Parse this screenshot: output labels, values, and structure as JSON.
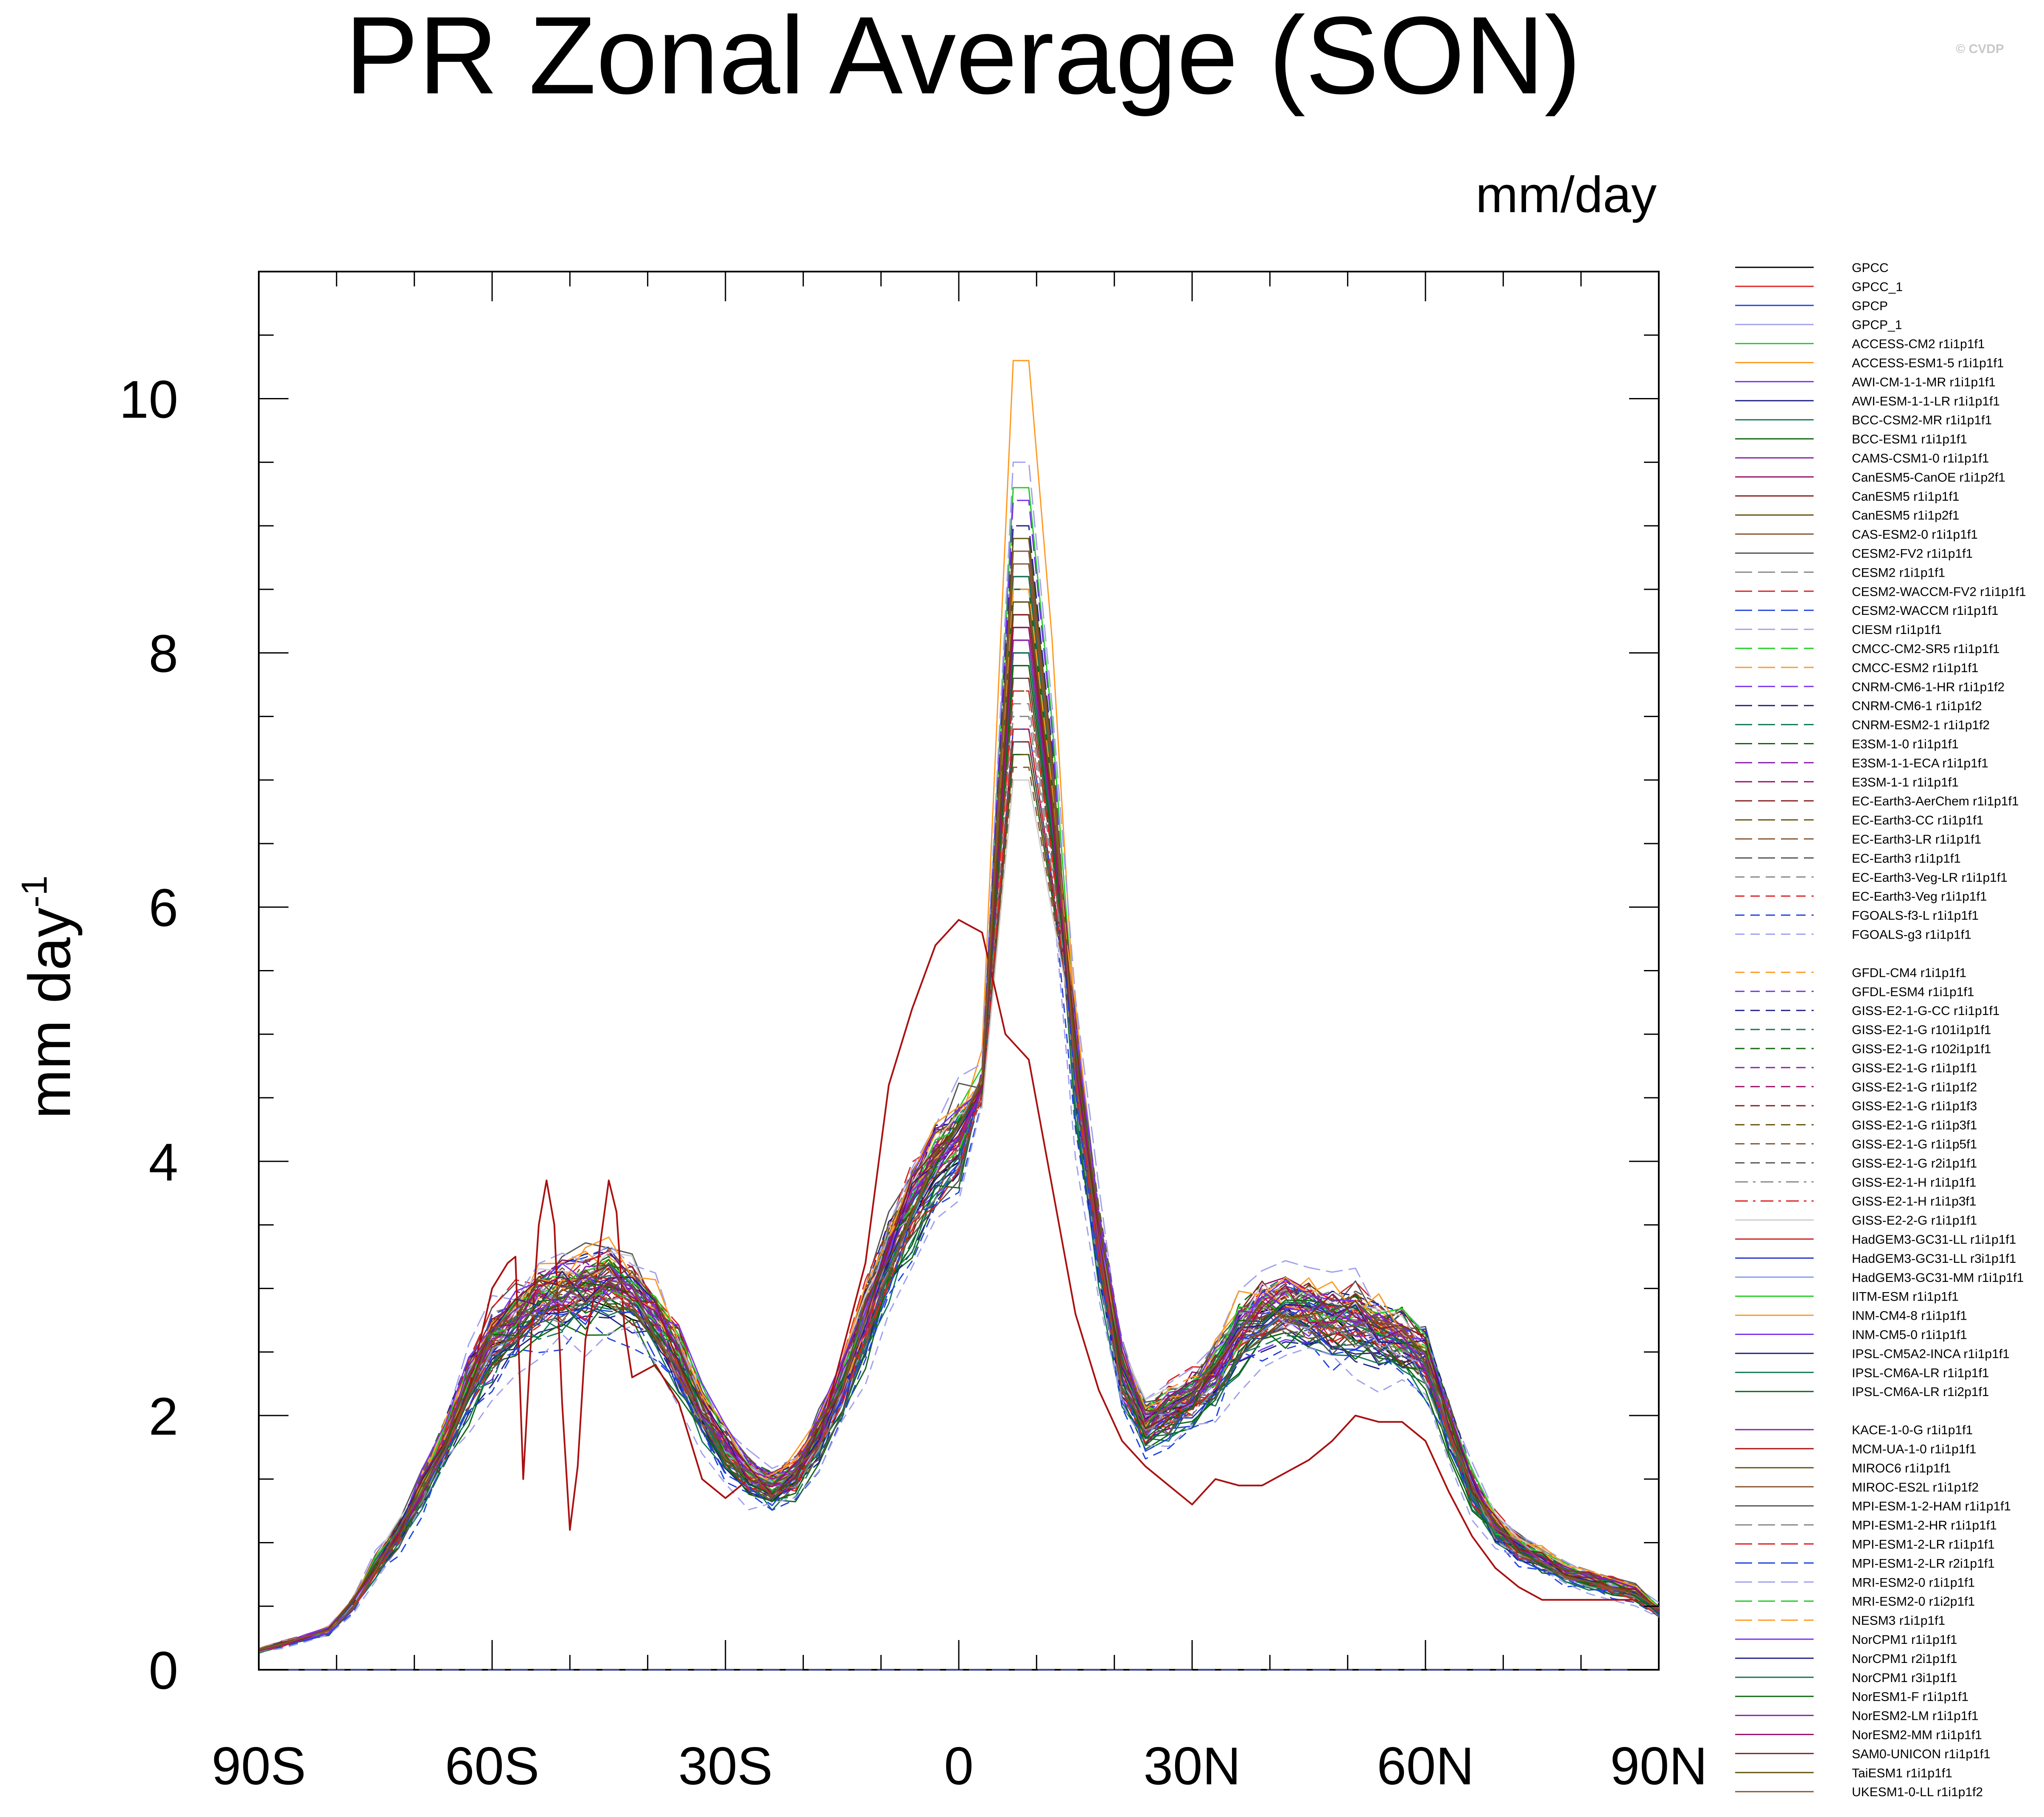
{
  "chart_data": {
    "type": "line",
    "title": "PR Zonal Average (SON)",
    "units": "mm/day",
    "ylabel": "mm day",
    "ylabel_superscript": "-1",
    "watermark": "© CVDP",
    "xlim": [
      -90,
      90
    ],
    "ylim": [
      0,
      11
    ],
    "x_ticks": [
      {
        "value": -90,
        "label": "90S"
      },
      {
        "value": -60,
        "label": "60S"
      },
      {
        "value": -30,
        "label": "30S"
      },
      {
        "value": 0,
        "label": "0"
      },
      {
        "value": 30,
        "label": "30N"
      },
      {
        "value": 60,
        "label": "60N"
      },
      {
        "value": 90,
        "label": "90N"
      }
    ],
    "y_ticks": [
      {
        "value": 0,
        "label": "0"
      },
      {
        "value": 2,
        "label": "2"
      },
      {
        "value": 4,
        "label": "4"
      },
      {
        "value": 6,
        "label": "6"
      },
      {
        "value": 8,
        "label": "8"
      },
      {
        "value": 10,
        "label": "10"
      }
    ],
    "reference": {
      "x": [
        -90,
        -87,
        -84,
        -81,
        -78,
        -75,
        -72,
        -69,
        -66,
        -63,
        -60,
        -57,
        -54,
        -51,
        -48,
        -45,
        -42,
        -39,
        -36,
        -33,
        -30,
        -27,
        -24,
        -21,
        -18,
        -15,
        -12,
        -9,
        -6,
        -3,
        0,
        3,
        6,
        9,
        12,
        15,
        18,
        21,
        24,
        27,
        30,
        33,
        36,
        39,
        42,
        45,
        48,
        51,
        54,
        57,
        60,
        63,
        66,
        69,
        72,
        75,
        78,
        81,
        84,
        87,
        90
      ],
      "y": [
        0.15,
        0.2,
        0.25,
        0.3,
        0.5,
        0.8,
        1.05,
        1.4,
        1.8,
        2.2,
        2.5,
        2.7,
        2.85,
        2.9,
        2.95,
        3.0,
        2.9,
        2.7,
        2.4,
        2.0,
        1.7,
        1.5,
        1.4,
        1.5,
        1.8,
        2.2,
        2.7,
        3.2,
        3.6,
        3.9,
        4.1,
        4.6,
        6.5,
        8.3,
        6.8,
        4.7,
        3.3,
        2.3,
        1.9,
        2.0,
        2.1,
        2.3,
        2.6,
        2.75,
        2.8,
        2.75,
        2.7,
        2.7,
        2.6,
        2.55,
        2.4,
        1.9,
        1.4,
        1.1,
        0.95,
        0.85,
        0.75,
        0.7,
        0.65,
        0.6,
        0.45
      ]
    },
    "highlight_anomaly": {
      "name": "MCM-UA-1-0 r1i1p1f1",
      "x": [
        -90,
        -87,
        -84,
        -81,
        -78,
        -75,
        -72,
        -69,
        -66,
        -63,
        -60,
        -58,
        -57,
        -56,
        -55,
        -54,
        -53,
        -52,
        -51,
        -50,
        -49,
        -48,
        -47,
        -46,
        -45,
        -44,
        -43,
        -42,
        -39,
        -36,
        -33,
        -30,
        -27,
        -24,
        -21,
        -18,
        -15,
        -12,
        -9,
        -6,
        -3,
        0,
        3,
        6,
        9,
        12,
        15,
        18,
        21,
        24,
        27,
        30,
        33,
        36,
        39,
        42,
        45,
        48,
        51,
        54,
        57,
        60,
        63,
        66,
        69,
        72,
        75,
        78,
        81,
        84,
        87,
        90
      ],
      "y": [
        0.15,
        0.2,
        0.25,
        0.3,
        0.5,
        0.8,
        1.05,
        1.4,
        1.8,
        2.2,
        3.0,
        3.2,
        3.25,
        1.5,
        2.6,
        3.5,
        3.85,
        3.5,
        2.1,
        1.1,
        1.6,
        2.6,
        2.9,
        3.4,
        3.85,
        3.6,
        2.7,
        2.3,
        2.4,
        2.1,
        1.5,
        1.35,
        1.5,
        1.45,
        1.5,
        1.8,
        2.5,
        3.2,
        4.6,
        5.2,
        5.7,
        5.9,
        5.8,
        5.0,
        4.8,
        3.8,
        2.8,
        2.2,
        1.8,
        1.6,
        1.45,
        1.3,
        1.5,
        1.45,
        1.45,
        1.55,
        1.65,
        1.8,
        2.0,
        1.95,
        1.95,
        1.8,
        1.4,
        1.05,
        0.8,
        0.65,
        0.55,
        0.55,
        0.55,
        0.55,
        0.55,
        0.5
      ]
    },
    "model_zero_line": {
      "name": "GISS-E2-1-H r1i1p3f1",
      "value": 0.0
    },
    "series": [
      {
        "name": "GPCC",
        "color": "#000000",
        "dash": "solid",
        "peak": 8.2,
        "offset": 0.0
      },
      {
        "name": "GPCC_1",
        "color": "#dd2222",
        "dash": "solid",
        "peak": 8.0,
        "offset": 0.05
      },
      {
        "name": "GPCP",
        "color": "#2244dd",
        "dash": "solid",
        "peak": 8.1,
        "offset": -0.05
      },
      {
        "name": "GPCP_1",
        "color": "#a0a0ee",
        "dash": "solid",
        "peak": 7.9,
        "offset": 0.02
      },
      {
        "name": "ACCESS-CM2 r1i1p1f1",
        "color": "#22cc22",
        "dash": "solid",
        "peak": 9.3,
        "offset": 0.08
      },
      {
        "name": "ACCESS-ESM1-5 r1i1p1f1",
        "color": "#ff9922",
        "dash": "solid",
        "peak": 10.3,
        "offset": 0.12
      },
      {
        "name": "AWI-CM-1-1-MR r1i1p1f1",
        "color": "#7733ee",
        "dash": "solid",
        "peak": 8.6,
        "offset": 0.0
      },
      {
        "name": "AWI-ESM-1-1-LR r1i1p1f1",
        "color": "#222288",
        "dash": "solid",
        "peak": 8.4,
        "offset": -0.06
      },
      {
        "name": "BCC-CSM2-MR r1i1p1f1",
        "color": "#117755",
        "dash": "solid",
        "peak": 8.5,
        "offset": -0.1
      },
      {
        "name": "BCC-ESM1 r1i1p1f1",
        "color": "#116611",
        "dash": "solid",
        "peak": 8.3,
        "offset": -0.12
      },
      {
        "name": "CAMS-CSM1-0 r1i1p1f1",
        "color": "#8822aa",
        "dash": "solid",
        "peak": 8.8,
        "offset": 0.05
      },
      {
        "name": "CanESM5-CanOE r1i1p2f1",
        "color": "#991166",
        "dash": "solid",
        "peak": 8.7,
        "offset": 0.1
      },
      {
        "name": "CanESM5 r1i1p1f1",
        "color": "#882222",
        "dash": "solid",
        "peak": 8.6,
        "offset": 0.1
      },
      {
        "name": "CanESM5 r1i1p2f1",
        "color": "#665511",
        "dash": "solid",
        "peak": 8.5,
        "offset": 0.08
      },
      {
        "name": "CAS-ESM2-0 r1i1p1f1",
        "color": "#885533",
        "dash": "solid",
        "peak": 8.9,
        "offset": -0.02
      },
      {
        "name": "CESM2-FV2 r1i1p1f1",
        "color": "#555555",
        "dash": "solid",
        "peak": 8.1,
        "offset": 0.15
      },
      {
        "name": "CESM2 r1i1p1f1",
        "color": "#888888",
        "dash": "longdash",
        "peak": 8.2,
        "offset": 0.12
      },
      {
        "name": "CESM2-WACCM-FV2 r1i1p1f1",
        "color": "#dd2222",
        "dash": "longdash",
        "peak": 8.0,
        "offset": 0.14
      },
      {
        "name": "CESM2-WACCM r1i1p1f1",
        "color": "#2244dd",
        "dash": "longdash",
        "peak": 8.3,
        "offset": 0.1
      },
      {
        "name": "CIESM r1i1p1f1",
        "color": "#a0a0ee",
        "dash": "longdash",
        "peak": 9.5,
        "offset": 0.2
      },
      {
        "name": "CMCC-CM2-SR5 r1i1p1f1",
        "color": "#22cc22",
        "dash": "longdash",
        "peak": 8.4,
        "offset": 0.05
      },
      {
        "name": "CMCC-ESM2 r1i1p1f1",
        "color": "#ff9922",
        "dash": "longdash",
        "peak": 8.5,
        "offset": 0.04
      },
      {
        "name": "CNRM-CM6-1-HR r1i1p1f2",
        "color": "#7733ee",
        "dash": "longdash",
        "peak": 9.2,
        "offset": -0.05
      },
      {
        "name": "CNRM-CM6-1 r1i1p1f2",
        "color": "#222288",
        "dash": "longdash",
        "peak": 9.0,
        "offset": -0.08
      },
      {
        "name": "CNRM-ESM2-1 r1i1p1f2",
        "color": "#117755",
        "dash": "longdash",
        "peak": 8.9,
        "offset": -0.07
      },
      {
        "name": "E3SM-1-0 r1i1p1f1",
        "color": "#116611",
        "dash": "longdash",
        "peak": 8.0,
        "offset": 0.0
      },
      {
        "name": "E3SM-1-1-ECA r1i1p1f1",
        "color": "#8822aa",
        "dash": "longdash",
        "peak": 8.1,
        "offset": 0.02
      },
      {
        "name": "E3SM-1-1 r1i1p1f1",
        "color": "#991166",
        "dash": "longdash",
        "peak": 8.0,
        "offset": 0.01
      },
      {
        "name": "EC-Earth3-AerChem r1i1p1f1",
        "color": "#882222",
        "dash": "longdash",
        "peak": 7.8,
        "offset": -0.02
      },
      {
        "name": "EC-Earth3-CC r1i1p1f1",
        "color": "#665511",
        "dash": "longdash",
        "peak": 7.7,
        "offset": -0.03
      },
      {
        "name": "EC-Earth3-LR r1i1p1f1",
        "color": "#885533",
        "dash": "longdash",
        "peak": 7.9,
        "offset": -0.01
      },
      {
        "name": "EC-Earth3 r1i1p1f1",
        "color": "#555555",
        "dash": "longdash",
        "peak": 7.8,
        "offset": -0.02
      },
      {
        "name": "EC-Earth3-Veg-LR r1i1p1f1",
        "color": "#888888",
        "dash": "dash",
        "peak": 7.6,
        "offset": 0.0
      },
      {
        "name": "EC-Earth3-Veg r1i1p1f1",
        "color": "#dd2222",
        "dash": "dash",
        "peak": 7.7,
        "offset": -0.01
      },
      {
        "name": "FGOALS-f3-L r1i1p1f1",
        "color": "#2244dd",
        "dash": "dash",
        "peak": 7.4,
        "offset": -0.15
      },
      {
        "name": "FGOALS-g3 r1i1p1f1",
        "color": "#a0a0ee",
        "dash": "dash",
        "peak": 7.3,
        "offset": -0.2
      },
      {
        "name": "GFDL-CM4 r1i1p1f1",
        "color": "#ff9922",
        "dash": "dash",
        "peak": 8.6,
        "offset": 0.06
      },
      {
        "name": "GFDL-ESM4 r1i1p1f1",
        "color": "#7733ee",
        "dash": "dash",
        "peak": 8.5,
        "offset": 0.05
      },
      {
        "name": "GISS-E2-1-G-CC r1i1p1f1",
        "color": "#222288",
        "dash": "dash",
        "peak": 7.2,
        "offset": 0.1
      },
      {
        "name": "GISS-E2-1-G r101i1p1f1",
        "color": "#117755",
        "dash": "dash",
        "peak": 7.3,
        "offset": 0.09
      },
      {
        "name": "GISS-E2-1-G r102i1p1f1",
        "color": "#116611",
        "dash": "dash",
        "peak": 7.2,
        "offset": 0.1
      },
      {
        "name": "GISS-E2-1-G r1i1p1f1",
        "color": "#8822aa",
        "dash": "dash",
        "peak": 7.3,
        "offset": 0.08
      },
      {
        "name": "GISS-E2-1-G r1i1p1f2",
        "color": "#991166",
        "dash": "dash",
        "peak": 7.4,
        "offset": 0.07
      },
      {
        "name": "GISS-E2-1-G r1i1p1f3",
        "color": "#882222",
        "dash": "dash",
        "peak": 7.3,
        "offset": 0.1
      },
      {
        "name": "GISS-E2-1-G r1i1p3f1",
        "color": "#665511",
        "dash": "dash",
        "peak": 7.2,
        "offset": 0.1
      },
      {
        "name": "GISS-E2-1-G r1i1p5f1",
        "color": "#885533",
        "dash": "dash",
        "peak": 7.1,
        "offset": 0.1
      },
      {
        "name": "GISS-E2-1-G r2i1p1f1",
        "color": "#555555",
        "dash": "dash",
        "peak": 7.3,
        "offset": 0.1
      },
      {
        "name": "GISS-E2-1-H r1i1p1f1",
        "color": "#888888",
        "dash": "dashdot",
        "peak": 7.5,
        "offset": 0.05
      },
      {
        "name": "GISS-E2-1-H r1i1p3f1",
        "color": "#dd2222",
        "dash": "dashdot",
        "peak": 7.4,
        "offset": 0.05
      },
      {
        "name": "GISS-E2-2-G r1i1p1f1",
        "color": "#cccccc",
        "dash": "solid",
        "peak": 7.0,
        "offset": 0.12
      },
      {
        "name": "HadGEM3-GC31-LL r1i1p1f1",
        "color": "#cc2222",
        "dash": "solid",
        "peak": 8.6,
        "offset": 0.0
      },
      {
        "name": "HadGEM3-GC31-LL r3i1p1f1",
        "color": "#2233cc",
        "dash": "solid",
        "peak": 8.5,
        "offset": 0.0
      },
      {
        "name": "HadGEM3-GC31-MM r1i1p1f1",
        "color": "#8899ee",
        "dash": "solid",
        "peak": 8.8,
        "offset": 0.02
      },
      {
        "name": "IITM-ESM r1i1p1f1",
        "color": "#22cc22",
        "dash": "solid",
        "peak": 8.2,
        "offset": 0.1
      },
      {
        "name": "INM-CM4-8 r1i1p1f1",
        "color": "#ff9922",
        "dash": "solid",
        "peak": 7.9,
        "offset": 0.15
      },
      {
        "name": "INM-CM5-0 r1i1p1f1",
        "color": "#7733ee",
        "dash": "solid",
        "peak": 8.0,
        "offset": 0.12
      },
      {
        "name": "IPSL-CM5A2-INCA r1i1p1f1",
        "color": "#222288",
        "dash": "solid",
        "peak": 8.7,
        "offset": -0.05
      },
      {
        "name": "IPSL-CM6A-LR r1i1p1f1",
        "color": "#117755",
        "dash": "solid",
        "peak": 8.6,
        "offset": -0.08
      },
      {
        "name": "IPSL-CM6A-LR r1i2p1f1",
        "color": "#116611",
        "dash": "solid",
        "peak": 8.5,
        "offset": -0.08
      },
      {
        "name": "KACE-1-0-G r1i1p1f1",
        "color": "#8822aa",
        "dash": "solid",
        "peak": 8.4,
        "offset": 0.05
      },
      {
        "name": "MCM-UA-1-0 r1i1p1f1",
        "color": "#aa1111",
        "dash": "solid",
        "peak": 5.9,
        "offset": 0.0,
        "anomalous": true
      },
      {
        "name": "MIROC6 r1i1p1f1",
        "color": "#665511",
        "dash": "solid",
        "peak": 8.9,
        "offset": 0.0
      },
      {
        "name": "MIROC-ES2L r1i1p1f2",
        "color": "#885533",
        "dash": "solid",
        "peak": 8.8,
        "offset": 0.02
      },
      {
        "name": "MPI-ESM-1-2-HAM r1i1p1f1",
        "color": "#555555",
        "dash": "solid",
        "peak": 8.3,
        "offset": -0.05
      },
      {
        "name": "MPI-ESM1-2-HR r1i1p1f1",
        "color": "#888888",
        "dash": "longdash",
        "peak": 8.1,
        "offset": -0.03
      },
      {
        "name": "MPI-ESM1-2-LR r1i1p1f1",
        "color": "#dd2222",
        "dash": "longdash",
        "peak": 8.2,
        "offset": -0.06
      },
      {
        "name": "MPI-ESM1-2-LR r2i1p1f1",
        "color": "#2244dd",
        "dash": "longdash",
        "peak": 8.2,
        "offset": -0.06
      },
      {
        "name": "MRI-ESM2-0 r1i1p1f1",
        "color": "#a0a0ee",
        "dash": "longdash",
        "peak": 8.4,
        "offset": 0.04
      },
      {
        "name": "MRI-ESM2-0 r1i2p1f1",
        "color": "#22cc22",
        "dash": "longdash",
        "peak": 8.3,
        "offset": 0.05
      },
      {
        "name": "NESM3 r1i1p1f1",
        "color": "#ff9922",
        "dash": "longdash",
        "peak": 8.5,
        "offset": 0.08
      },
      {
        "name": "NorCPM1 r1i1p1f1",
        "color": "#7733ee",
        "dash": "solid",
        "peak": 8.0,
        "offset": 0.05
      },
      {
        "name": "NorCPM1 r2i1p1f1",
        "color": "#222288",
        "dash": "solid",
        "peak": 8.0,
        "offset": 0.05
      },
      {
        "name": "NorCPM1 r3i1p1f1",
        "color": "#117755",
        "dash": "solid",
        "peak": 8.0,
        "offset": 0.04
      },
      {
        "name": "NorESM1-F r1i1p1f1",
        "color": "#116611",
        "dash": "solid",
        "peak": 7.9,
        "offset": 0.03
      },
      {
        "name": "NorESM2-LM r1i1p1f1",
        "color": "#8822aa",
        "dash": "solid",
        "peak": 8.1,
        "offset": 0.05
      },
      {
        "name": "NorESM2-MM r1i1p1f1",
        "color": "#991166",
        "dash": "solid",
        "peak": 8.2,
        "offset": 0.06
      },
      {
        "name": "SAM0-UNICON r1i1p1f1",
        "color": "#882222",
        "dash": "solid",
        "peak": 8.3,
        "offset": 0.07
      },
      {
        "name": "TaiESM1 r1i1p1f1",
        "color": "#665511",
        "dash": "solid",
        "peak": 8.4,
        "offset": 0.05
      },
      {
        "name": "UKESM1-0-LL r1i1p1f2",
        "color": "#885533",
        "dash": "solid",
        "peak": 8.7,
        "offset": 0.02
      }
    ]
  }
}
